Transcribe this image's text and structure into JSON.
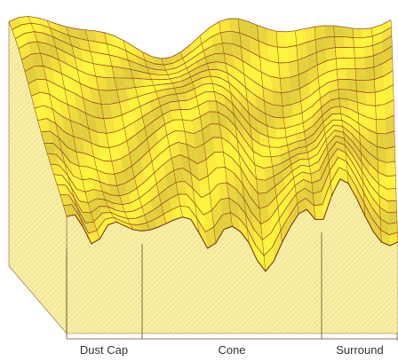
{
  "regions": [
    "Dust Cap",
    "Cone",
    "Surround"
  ]
}
